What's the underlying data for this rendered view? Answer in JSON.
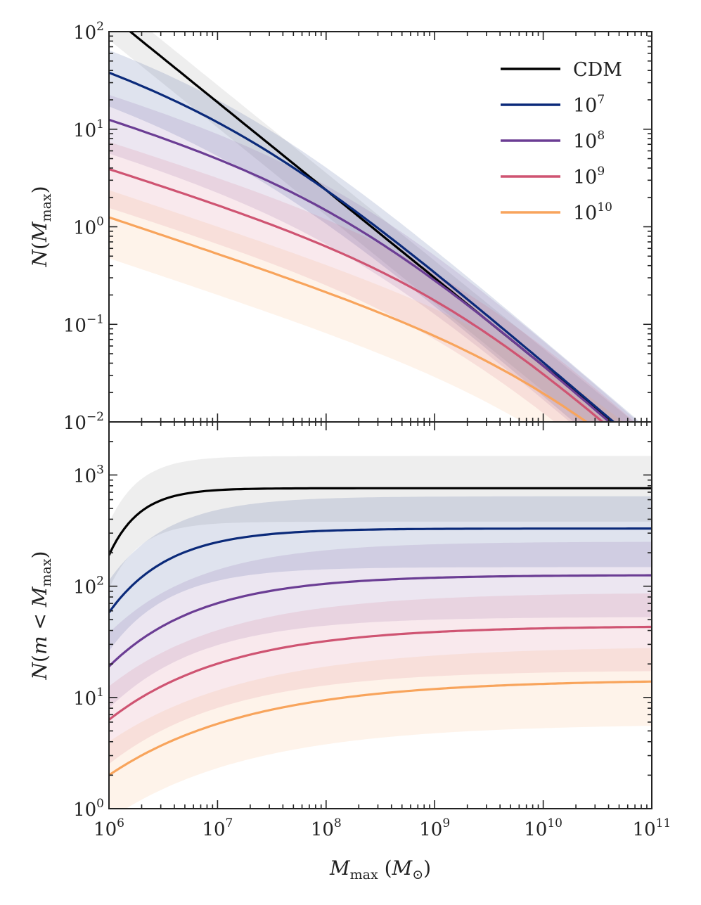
{
  "chart_data": [
    {
      "type": "line",
      "panel": "top",
      "xlabel": "",
      "ylabel_main": "N",
      "ylabel_parts": [
        "N(",
        "M",
        "max",
        ")"
      ],
      "xscale": "log",
      "yscale": "log",
      "xlim": [
        1000000,
        100000000000
      ],
      "ylim": [
        0.01,
        100
      ],
      "y_tick_labels": [
        {
          "base": "10",
          "exp": "2",
          "value": 100
        },
        {
          "base": "10",
          "exp": "1",
          "value": 10
        },
        {
          "base": "10",
          "exp": "0",
          "value": 1
        },
        {
          "base": "10",
          "exp": "−1",
          "value": 0.1
        },
        {
          "base": "10",
          "exp": "−2",
          "value": 0.01
        }
      ],
      "legend": {
        "placement": "top-right",
        "entries": [
          {
            "label": "CDM",
            "sup": "",
            "color": "#000000"
          },
          {
            "label": "10",
            "sup": "7",
            "color": "#0b2a7a"
          },
          {
            "label": "10",
            "sup": "8",
            "color": "#6b3d94"
          },
          {
            "label": "10",
            "sup": "9",
            "color": "#cf5472"
          },
          {
            "label": "10",
            "sup": "10",
            "color": "#f8a45c"
          }
        ]
      },
      "series": [
        {
          "name": "CDM",
          "color": "#000000",
          "kind": "power",
          "y_at_1e6": 150,
          "slope": -0.9,
          "band": [
            0.55,
            1.5
          ]
        },
        {
          "name": "10^7",
          "color": "#0b2a7a",
          "kind": "transition",
          "y_at_1e6": 38,
          "y_at_1e11": 0.00463,
          "band": [
            0.45,
            1.7
          ]
        },
        {
          "name": "10^8",
          "color": "#6b3d94",
          "kind": "transition",
          "y_at_1e6": 12.5,
          "y_at_1e11": 0.0042,
          "band": [
            0.45,
            1.8
          ]
        },
        {
          "name": "10^9",
          "color": "#cf5472",
          "kind": "transition",
          "y_at_1e6": 3.9,
          "y_at_1e11": 0.0037,
          "band": [
            0.4,
            1.9
          ]
        },
        {
          "name": "10^10",
          "color": "#f8a45c",
          "kind": "transition",
          "y_at_1e6": 1.25,
          "y_at_1e11": 0.0031,
          "band": [
            0.38,
            1.9
          ]
        }
      ]
    },
    {
      "type": "line",
      "panel": "bottom",
      "xlabel_parts": [
        "M",
        "max",
        " (",
        "M",
        "⊙",
        ")"
      ],
      "ylabel_parts": [
        "N(",
        "m",
        " < ",
        "M",
        "max",
        ")"
      ],
      "xscale": "log",
      "yscale": "log",
      "xlim": [
        1000000,
        100000000000
      ],
      "ylim": [
        1,
        3000
      ],
      "x_tick_labels": [
        {
          "base": "10",
          "exp": "6",
          "value": 1000000
        },
        {
          "base": "10",
          "exp": "7",
          "value": 10000000
        },
        {
          "base": "10",
          "exp": "8",
          "value": 100000000
        },
        {
          "base": "10",
          "exp": "9",
          "value": 1000000000
        },
        {
          "base": "10",
          "exp": "10",
          "value": 10000000000
        },
        {
          "base": "10",
          "exp": "11",
          "value": 100000000000
        }
      ],
      "y_tick_labels": [
        {
          "base": "10",
          "exp": "3",
          "value": 1000
        },
        {
          "base": "10",
          "exp": "2",
          "value": 100
        },
        {
          "base": "10",
          "exp": "1",
          "value": 10
        },
        {
          "base": "10",
          "exp": "0",
          "value": 1
        }
      ],
      "series": [
        {
          "name": "CDM",
          "color": "#000000",
          "y_at_1e6": 190,
          "plateau": 760,
          "scale_decades": 0.28,
          "band": [
            0.5,
            1.95
          ]
        },
        {
          "name": "10^7",
          "color": "#0b2a7a",
          "y_at_1e6": 58,
          "plateau": 330,
          "scale_decades": 0.55,
          "band": [
            0.45,
            1.95
          ]
        },
        {
          "name": "10^8",
          "color": "#6b3d94",
          "y_at_1e6": 19,
          "plateau": 126,
          "scale_decades": 0.85,
          "band": [
            0.42,
            2.0
          ]
        },
        {
          "name": "10^9",
          "color": "#cf5472",
          "y_at_1e6": 6.3,
          "plateau": 44,
          "scale_decades": 1.1,
          "band": [
            0.4,
            2.0
          ]
        },
        {
          "name": "10^10",
          "color": "#f8a45c",
          "y_at_1e6": 2.0,
          "plateau": 14.5,
          "scale_decades": 1.3,
          "band": [
            0.4,
            2.0
          ]
        }
      ]
    }
  ]
}
